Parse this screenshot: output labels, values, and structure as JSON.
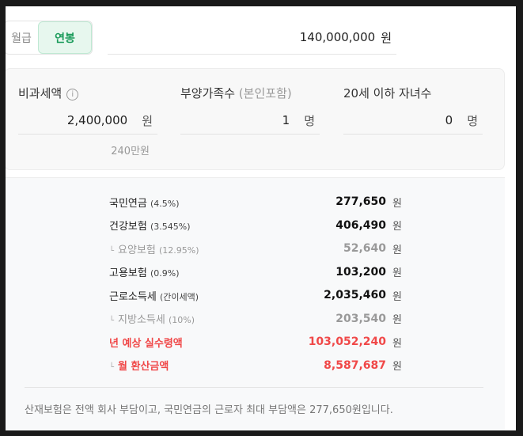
{
  "toggle": {
    "monthly": "월급",
    "annual": "연봉",
    "selected": "annual"
  },
  "salary": {
    "value": "140,000,000",
    "unit": "원"
  },
  "inputs": {
    "nontax": {
      "label": "비과세액",
      "info_icon": "info-icon",
      "value": "2,400,000",
      "unit": "원",
      "hint": "240만원"
    },
    "dependents": {
      "label": "부양가족수",
      "sublabel": "(본인포함)",
      "value": "1",
      "unit": "명"
    },
    "children": {
      "label": "20세 이하 자녀수",
      "value": "0",
      "unit": "명"
    }
  },
  "results": [
    {
      "name": "국민연금",
      "rate": "(4.5%)",
      "value": "277,650",
      "unit": "원",
      "style": "main"
    },
    {
      "name": "건강보험",
      "rate": "(3.545%)",
      "value": "406,490",
      "unit": "원",
      "style": "main"
    },
    {
      "name": "요양보험",
      "rate": "(12.95%)",
      "value": "52,640",
      "unit": "원",
      "style": "sub"
    },
    {
      "name": "고용보험",
      "rate": "(0.9%)",
      "value": "103,200",
      "unit": "원",
      "style": "main"
    },
    {
      "name": "근로소득세",
      "rate": "(간이세액)",
      "value": "2,035,460",
      "unit": "원",
      "style": "main"
    },
    {
      "name": "지방소득세",
      "rate": "(10%)",
      "value": "203,540",
      "unit": "원",
      "style": "sub"
    },
    {
      "name": "년 예상 실수령액",
      "rate": "",
      "value": "103,052,240",
      "unit": "원",
      "style": "red"
    },
    {
      "name": "월 환산금액",
      "rate": "",
      "value": "8,587,687",
      "unit": "원",
      "style": "red-sub"
    }
  ],
  "footer": "산재보험은 전액 회사 부담이고, 국민연금의 근로자 최대 부담액은 277,650원입니다.",
  "colors": {
    "accent": "#1a9b5a",
    "highlight": "#f04848"
  }
}
